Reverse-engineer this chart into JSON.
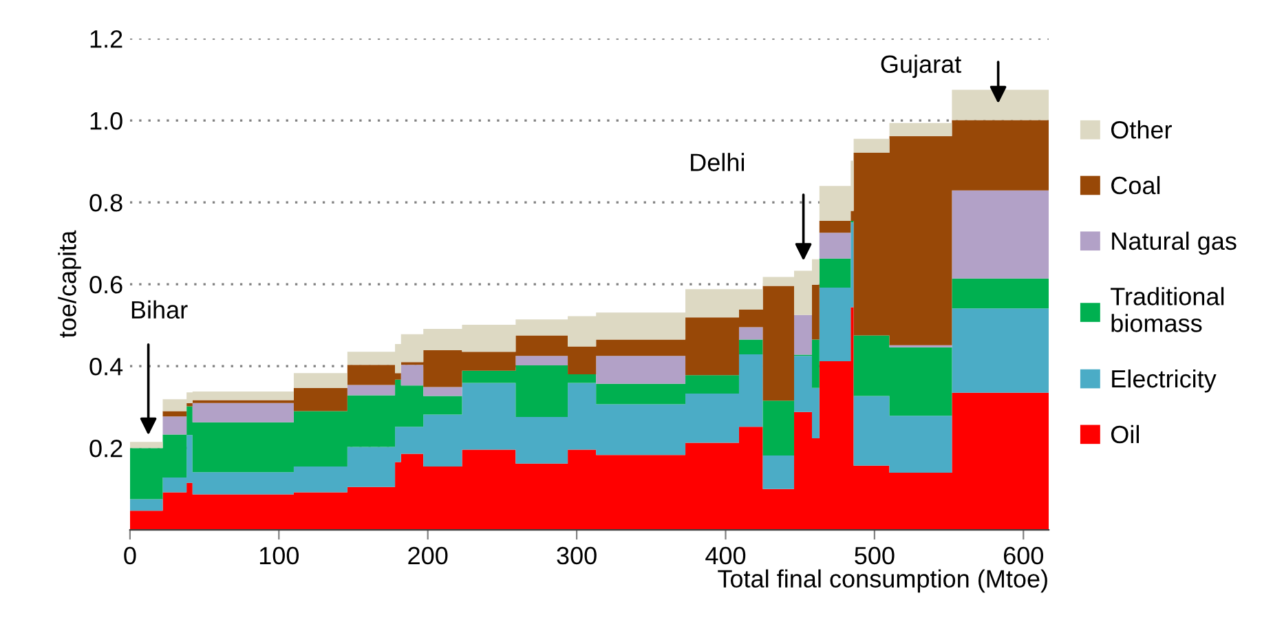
{
  "chart_data": {
    "type": "area",
    "stacked": true,
    "xlabel": "Total final consumption (Mtoe)",
    "ylabel": "toe/capita",
    "x": [
      0,
      22,
      22,
      38,
      38,
      42,
      42,
      110,
      110,
      146,
      146,
      178,
      178,
      182,
      182,
      197,
      197,
      223,
      223,
      259,
      259,
      294,
      294,
      313,
      313,
      373,
      373,
      409,
      409,
      425,
      425,
      446,
      446,
      458,
      458,
      463,
      463,
      484,
      484,
      486,
      486,
      510,
      510,
      552,
      552,
      617
    ],
    "series": [
      {
        "name": "Oil",
        "color": "#ff0000",
        "values": [
          0.047,
          0.047,
          0.092,
          0.092,
          0.115,
          0.115,
          0.087,
          0.087,
          0.092,
          0.092,
          0.105,
          0.105,
          0.166,
          0.166,
          0.186,
          0.186,
          0.155,
          0.155,
          0.196,
          0.196,
          0.162,
          0.162,
          0.196,
          0.196,
          0.183,
          0.183,
          0.213,
          0.213,
          0.252,
          0.252,
          0.1,
          0.1,
          0.288,
          0.288,
          0.224,
          0.224,
          0.412,
          0.412,
          0.544,
          0.544,
          0.157,
          0.157,
          0.14,
          0.14,
          0.335,
          0.335
        ]
      },
      {
        "name": "Electricity",
        "color": "#4bacc6",
        "values": [
          0.028,
          0.028,
          0.036,
          0.036,
          0.117,
          0.117,
          0.054,
          0.054,
          0.063,
          0.063,
          0.098,
          0.098,
          0.086,
          0.086,
          0.066,
          0.066,
          0.127,
          0.127,
          0.163,
          0.163,
          0.114,
          0.114,
          0.163,
          0.163,
          0.124,
          0.124,
          0.12,
          0.12,
          0.177,
          0.177,
          0.082,
          0.082,
          0.137,
          0.137,
          0.123,
          0.123,
          0.18,
          0.18,
          0.207,
          0.207,
          0.17,
          0.17,
          0.139,
          0.139,
          0.206,
          0.206
        ]
      },
      {
        "name": "Traditional\nbiomass",
        "color": "#00b050",
        "values": [
          0.125,
          0.125,
          0.105,
          0.105,
          0.07,
          0.07,
          0.122,
          0.122,
          0.135,
          0.135,
          0.126,
          0.126,
          0.115,
          0.115,
          0.101,
          0.101,
          0.045,
          0.045,
          0.03,
          0.03,
          0.126,
          0.126,
          0.021,
          0.021,
          0.05,
          0.05,
          0.045,
          0.045,
          0.036,
          0.036,
          0.134,
          0.134,
          0.003,
          0.003,
          0.118,
          0.118,
          0.071,
          0.071,
          0.004,
          0.004,
          0.148,
          0.148,
          0.167,
          0.167,
          0.073,
          0.073
        ]
      },
      {
        "name": "Natural gas",
        "color": "#b2a1c7",
        "values": [
          0,
          0,
          0.044,
          0.044,
          0,
          0,
          0.047,
          0.047,
          0,
          0,
          0.025,
          0.025,
          0,
          0,
          0.05,
          0.05,
          0.022,
          0.022,
          0,
          0,
          0.023,
          0.023,
          0,
          0,
          0.068,
          0.068,
          0,
          0,
          0.03,
          0.03,
          0,
          0,
          0.097,
          0.097,
          0,
          0,
          0.063,
          0.063,
          0,
          0,
          0,
          0,
          0.005,
          0.005,
          0.215,
          0.215
        ]
      },
      {
        "name": "Coal",
        "color": "#984807",
        "values": [
          0,
          0,
          0.013,
          0.013,
          0.008,
          0.008,
          0.007,
          0.007,
          0.057,
          0.057,
          0.049,
          0.049,
          0.016,
          0.016,
          0.007,
          0.007,
          0.09,
          0.09,
          0.046,
          0.046,
          0.05,
          0.05,
          0.068,
          0.068,
          0.04,
          0.04,
          0.141,
          0.141,
          0.043,
          0.043,
          0.28,
          0.28,
          0,
          0,
          0.134,
          0.134,
          0.029,
          0.029,
          0.024,
          0.024,
          0.446,
          0.446,
          0.511,
          0.511,
          0.172,
          0.172
        ]
      },
      {
        "name": "Other",
        "color": "#ddd9c3",
        "values": [
          0.015,
          0.015,
          0.029,
          0.029,
          0.026,
          0.026,
          0.021,
          0.021,
          0.036,
          0.036,
          0.032,
          0.032,
          0.071,
          0.071,
          0.068,
          0.068,
          0.052,
          0.052,
          0.066,
          0.066,
          0.039,
          0.039,
          0.074,
          0.074,
          0.066,
          0.066,
          0.069,
          0.069,
          0.05,
          0.05,
          0.022,
          0.022,
          0.108,
          0.108,
          0.062,
          0.062,
          0.085,
          0.085,
          0.123,
          0.123,
          0.034,
          0.034,
          0.032,
          0.032,
          0.074,
          0.074
        ]
      }
    ],
    "xlim": [
      0,
      617
    ],
    "xticks": [
      0,
      100,
      200,
      300,
      400,
      500,
      600
    ],
    "ylim": [
      0,
      1.2
    ],
    "yticks": [
      {
        "value": 0.2,
        "label": "0.2"
      },
      {
        "value": 0.4,
        "label": "0.4"
      },
      {
        "value": 0.6,
        "label": "0.6"
      },
      {
        "value": 0.8,
        "label": "0.8"
      },
      {
        "value": 1.0,
        "label": "1.0"
      },
      {
        "value": 1.2,
        "label": "1.2"
      }
    ],
    "grid": "y",
    "legend": "right",
    "annotations": [
      "Bihar",
      "Delhi",
      "Gujarat"
    ]
  }
}
